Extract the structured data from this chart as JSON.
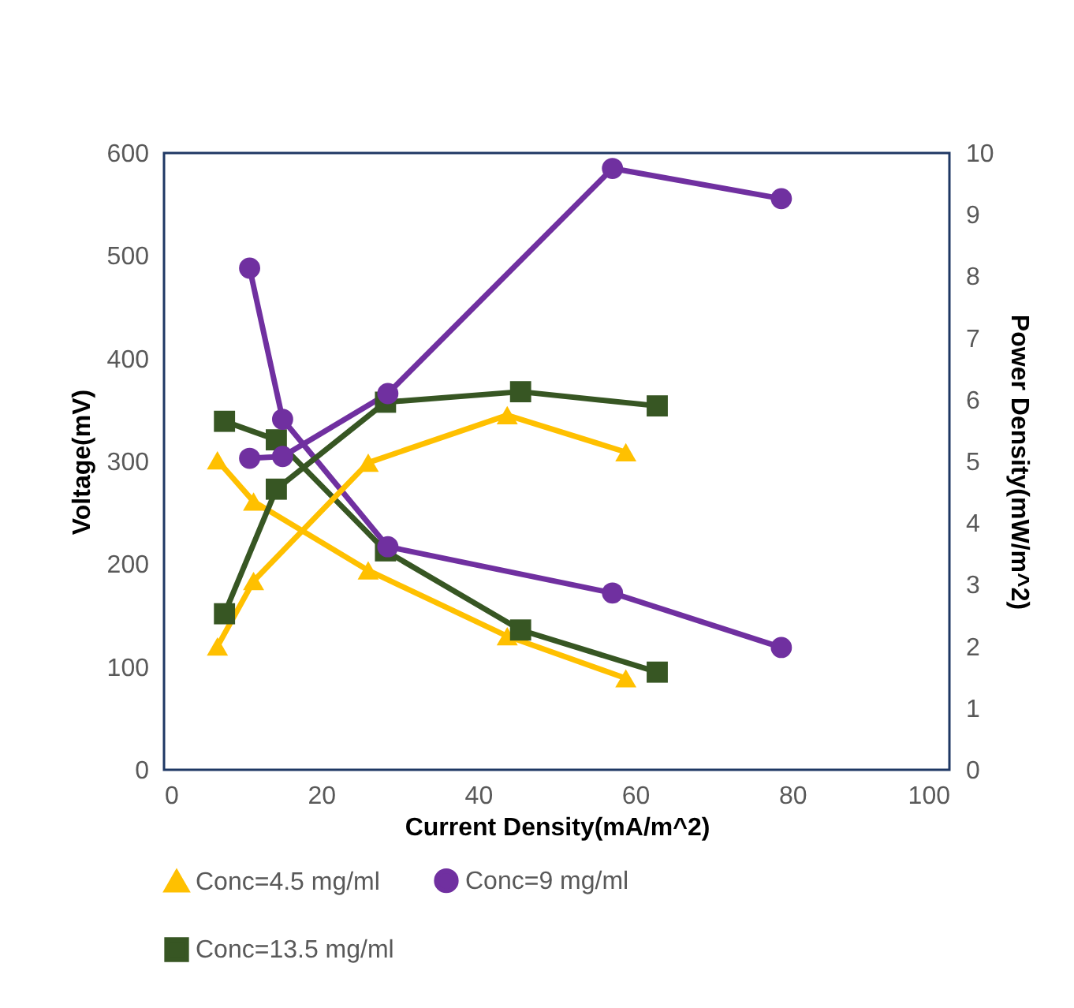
{
  "chart_data": {
    "type": "line",
    "xlabel": "Current Density(mA/m^2)",
    "ylabel": "Voltage(mV)",
    "y2label": "Power Density(mW/m^2)",
    "xlim": [
      0,
      100
    ],
    "xticks": [
      0,
      20,
      40,
      60,
      80,
      100
    ],
    "ylim": [
      0,
      600
    ],
    "yticks": [
      0,
      100,
      200,
      300,
      400,
      500,
      600
    ],
    "y2lim": [
      0,
      10
    ],
    "y2ticks": [
      0,
      1,
      2,
      3,
      4,
      5,
      6,
      7,
      8,
      9,
      10
    ],
    "legend": "bottom",
    "grid": false,
    "series": [
      {
        "name": "Conc=4.5 mg/ml",
        "color": "#ffc000",
        "marker": "triangle",
        "x": [
          6.8,
          11.4,
          26,
          43.7,
          58.8
        ],
        "values": [
          301,
          261,
          194,
          130,
          89
        ]
      },
      {
        "color": "#ffc000",
        "marker": "triangle",
        "axis": "y2",
        "x": [
          6.8,
          11.4,
          26,
          43.7,
          58.8
        ],
        "values": [
          2.0,
          3.06,
          4.98,
          5.75,
          5.15
        ]
      },
      {
        "name": "Conc=9 mg/ml",
        "color": "#7030a0",
        "marker": "circle",
        "x": [
          10.9,
          15.1,
          28.5,
          57.1,
          78.6
        ],
        "values": [
          488,
          341,
          217,
          172,
          119
        ]
      },
      {
        "color": "#7030a0",
        "marker": "circle",
        "axis": "y2",
        "x": [
          10.9,
          15.1,
          28.5,
          57.1,
          78.6
        ],
        "values": [
          5.05,
          5.08,
          6.1,
          9.75,
          9.26
        ]
      },
      {
        "name": "Conc=13.5 mg/ml",
        "color": "#375623",
        "marker": "square",
        "x": [
          7.7,
          14.3,
          28.2,
          45.4,
          62.8
        ],
        "values": [
          339,
          321,
          213,
          136,
          95
        ]
      },
      {
        "color": "#375623",
        "marker": "square",
        "axis": "y2",
        "x": [
          7.7,
          14.3,
          28.2,
          45.4,
          62.8
        ],
        "values": [
          2.53,
          4.55,
          5.96,
          6.13,
          5.9
        ]
      }
    ]
  }
}
